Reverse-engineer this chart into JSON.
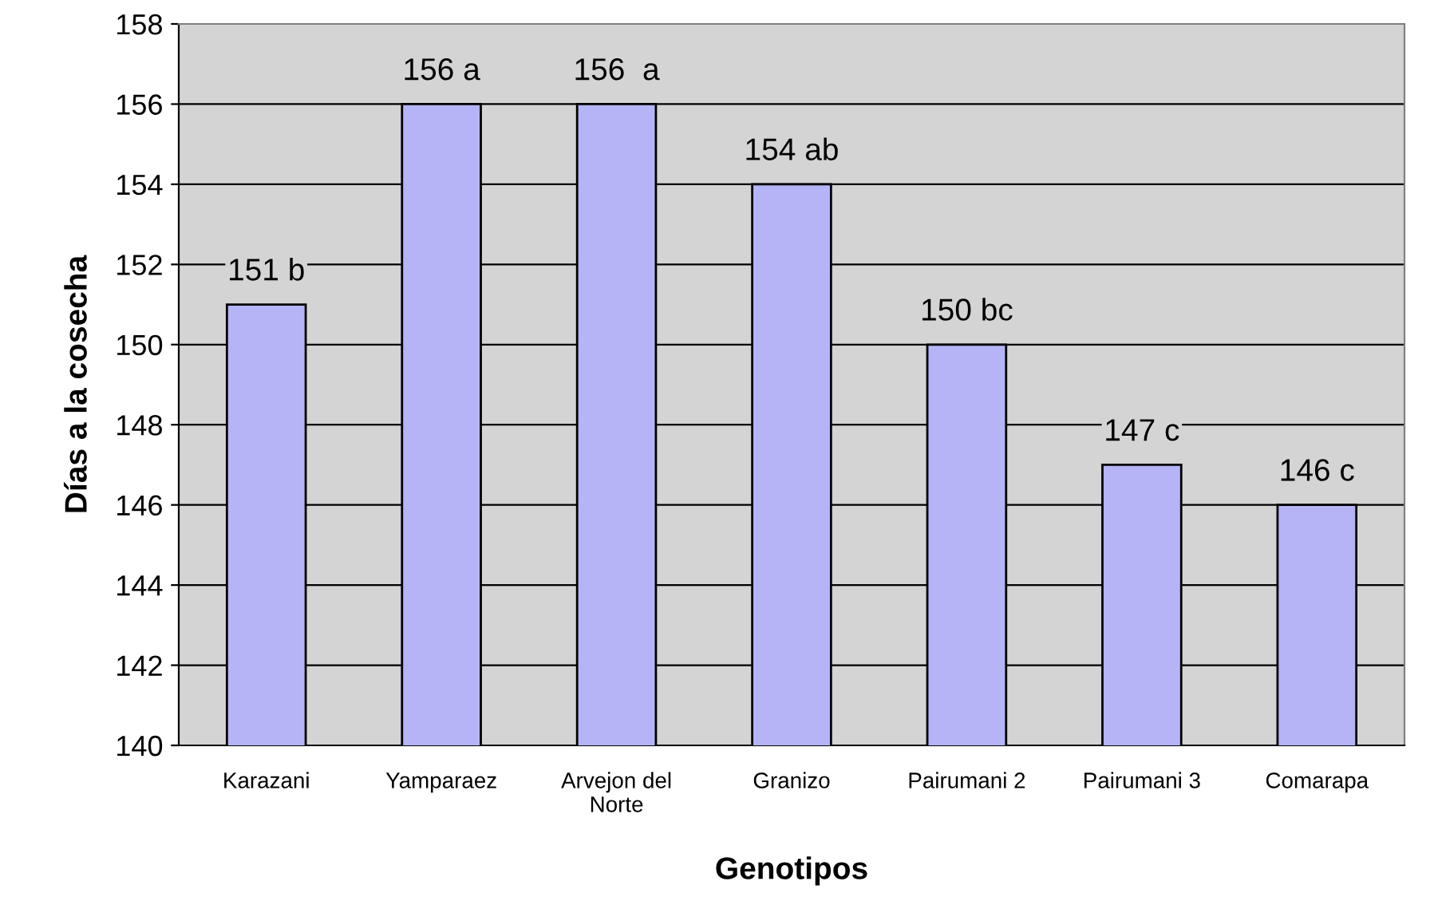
{
  "chart_data": {
    "type": "bar",
    "xlabel": "Genotipos",
    "ylabel": "Días a la cosecha",
    "categories": [
      "Karazani",
      "Yamparaez",
      "Arvejon del\nNorte",
      "Granizo",
      "Pairumani 2",
      "Pairumani 3",
      "Comarapa"
    ],
    "values": [
      151,
      156,
      156,
      154,
      150,
      147,
      146
    ],
    "value_labels": [
      "151 b",
      "156 a",
      "156  a",
      "154 ab",
      "150 bc",
      "147 c",
      "146 c"
    ],
    "color": "#b4b4f6",
    "ylim": [
      140,
      158
    ],
    "yticks": [
      140,
      142,
      144,
      146,
      148,
      150,
      152,
      154,
      156,
      158
    ],
    "grid": "y"
  }
}
